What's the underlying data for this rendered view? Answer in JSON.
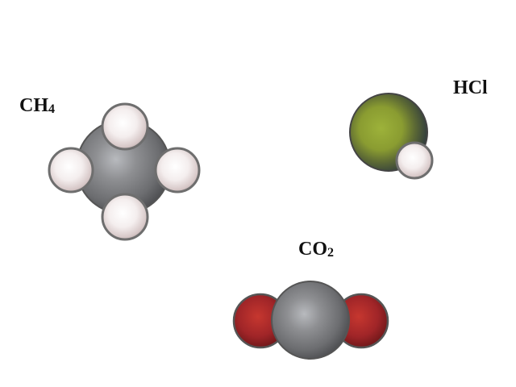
{
  "molecules": {
    "methane": {
      "symbol": "CH",
      "subscript": "4"
    },
    "hydrogen_chloride": {
      "symbol": "HCl",
      "subscript": ""
    },
    "carbon_dioxide": {
      "symbol": "CO",
      "subscript": "2"
    }
  },
  "colors": {
    "carbon": "#7a7b7d",
    "hydrogen": "#f2ecec",
    "oxygen": "#a8262a",
    "chlorine": "#8fa033",
    "outline": "#555555"
  }
}
